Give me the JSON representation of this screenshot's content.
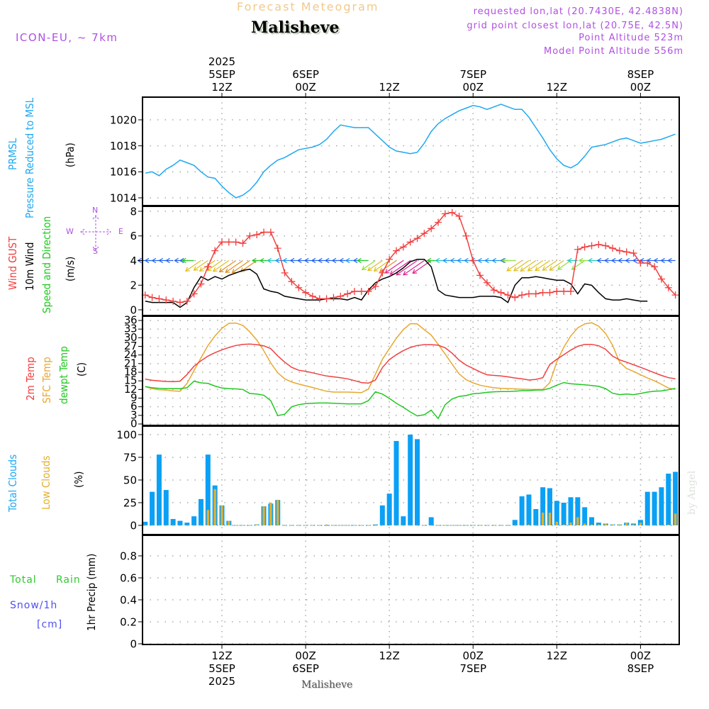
{
  "header": {
    "subtitle": "Forecast Meteogram",
    "location": "Malisheve",
    "model": "ICON-EU, ~ 7km",
    "requested": "requested lon,lat (20.7430E, 42.4838N)",
    "grid_point": "grid point closest lon,lat (20.75E, 42.5N)",
    "point_altitude": "Point Altitude 523m",
    "model_altitude": "Model Point Altitude 556m"
  },
  "footer": {
    "location": "Malisheve",
    "credit": "by Angel"
  },
  "colors": {
    "pressure": "#1fa8f0",
    "gust": "#f04040",
    "wind": "#000000",
    "temp2m": "#f04040",
    "sfc": "#e8a830",
    "dewpt": "#20c820",
    "total_clouds": "#0aa0f5",
    "low_clouds": "#e0b030",
    "compass": "#b050e0",
    "rain": "#30c830",
    "snow": "#5050f0"
  },
  "top_axis": [
    {
      "lines": [
        "2025",
        "5SEP",
        "12Z"
      ],
      "hour": 12
    },
    {
      "lines": [
        "6SEP",
        "00Z"
      ],
      "hour": 24
    },
    {
      "lines": [
        "12Z"
      ],
      "hour": 36
    },
    {
      "lines": [
        "7SEP",
        "00Z"
      ],
      "hour": 48
    },
    {
      "lines": [
        "12Z"
      ],
      "hour": 60
    },
    {
      "lines": [
        "8SEP",
        "00Z"
      ],
      "hour": 72
    }
  ],
  "bottom_axis": [
    {
      "lines": [
        "12Z",
        "5SEP",
        "2025"
      ],
      "hour": 12
    },
    {
      "lines": [
        "00Z",
        "6SEP"
      ],
      "hour": 24
    },
    {
      "lines": [
        "12Z"
      ],
      "hour": 36
    },
    {
      "lines": [
        "00Z",
        "7SEP"
      ],
      "hour": 48
    },
    {
      "lines": [
        "12Z"
      ],
      "hour": 60
    },
    {
      "lines": [
        "00Z",
        "8SEP"
      ],
      "hour": 72
    }
  ],
  "panel_labels": {
    "pressure": {
      "line1": "PRMSL",
      "line2": "Pressure Reduced to MSL",
      "unit": "(hPa)"
    },
    "wind": {
      "gust": "Wind GUST",
      "wind10": "10m Wind",
      "speed_dir": "Speed and Direction",
      "unit": "(m/s)",
      "compass": {
        "n": "N",
        "s": "S",
        "e": "E",
        "w": "W"
      }
    },
    "temp": {
      "t2m": "2m Temp",
      "sfc": "SFC Temp",
      "dewpt": "dewpt Temp",
      "unit": "(C)"
    },
    "clouds": {
      "total": "Total Clouds",
      "low": "Low Clouds",
      "unit": "(%)"
    },
    "precip": {
      "total": "Total",
      "rain": "Rain",
      "snow": "Snow/1h",
      "snow_unit": "[cm]",
      "axis": "1hr Precip (mm)"
    }
  },
  "chart_data": [
    {
      "type": "line",
      "title": "PRMSL Pressure Reduced to MSL",
      "ylabel": "(hPa)",
      "ylim": [
        1013.5,
        1021.8
      ],
      "yticks": [
        1014,
        1016,
        1018,
        1020
      ],
      "grid": true,
      "x_hours_start": 1,
      "series": [
        {
          "name": "PRMSL",
          "values": [
            1015.9,
            1016.0,
            1015.7,
            1016.2,
            1016.5,
            1016.9,
            1016.7,
            1016.5,
            1016.0,
            1015.6,
            1015.5,
            1014.9,
            1014.4,
            1014.0,
            1014.2,
            1014.6,
            1015.2,
            1016.0,
            1016.5,
            1016.9,
            1017.1,
            1017.4,
            1017.7,
            1017.8,
            1017.9,
            1018.1,
            1018.5,
            1019.1,
            1019.6,
            1019.5,
            1019.4,
            1019.4,
            1019.4,
            1018.9,
            1018.4,
            1017.9,
            1017.6,
            1017.5,
            1017.4,
            1017.5,
            1018.2,
            1019.1,
            1019.7,
            1020.1,
            1020.4,
            1020.7,
            1020.9,
            1021.1,
            1021.0,
            1020.8,
            1021.0,
            1021.2,
            1021.0,
            1020.8,
            1020.8,
            1020.2,
            1019.4,
            1018.6,
            1017.7,
            1017.0,
            1016.5,
            1016.3,
            1016.6,
            1017.2,
            1017.9,
            1018.0,
            1018.1,
            1018.3,
            1018.5,
            1018.6,
            1018.4,
            1018.2,
            1018.3,
            1018.4,
            1018.5,
            1018.7,
            1018.9
          ]
        }
      ]
    },
    {
      "type": "line",
      "title": "Wind GUST / 10m Wind Speed and Direction",
      "ylabel": "(m/s)",
      "ylim": [
        -0.4,
        8.4
      ],
      "yticks": [
        0,
        2,
        4,
        6,
        8
      ],
      "grid": true,
      "x_hours_start": 1,
      "series": [
        {
          "name": "Wind GUST",
          "values": [
            1.2,
            1.0,
            0.9,
            0.8,
            0.7,
            0.6,
            0.7,
            1.3,
            2.1,
            3.5,
            4.8,
            5.5,
            5.5,
            5.5,
            5.4,
            6.0,
            6.1,
            6.3,
            6.3,
            5.0,
            3.0,
            2.3,
            1.8,
            1.4,
            1.1,
            0.9,
            0.9,
            1.0,
            1.1,
            1.3,
            1.5,
            1.5,
            1.5,
            1.9,
            3.0,
            4.1,
            4.8,
            5.1,
            5.5,
            5.8,
            6.2,
            6.6,
            7.1,
            7.8,
            7.9,
            7.6,
            6.0,
            4.0,
            2.8,
            2.2,
            1.6,
            1.4,
            1.2,
            1.0,
            1.2,
            1.3,
            1.3,
            1.4,
            1.4,
            1.5,
            1.5,
            1.5,
            4.9,
            5.1,
            5.2,
            5.3,
            5.2,
            5.0,
            4.8,
            4.7,
            4.6,
            3.8,
            3.8,
            3.5,
            2.5,
            1.8,
            1.2,
            1.1,
            0.9,
            0.8,
            0.9,
            1.1
          ]
        },
        {
          "name": "10m Wind",
          "values": [
            0.7,
            0.6,
            0.6,
            0.6,
            0.6,
            0.2,
            0.6,
            1.8,
            2.7,
            2.4,
            2.7,
            2.5,
            2.8,
            3.0,
            3.2,
            3.3,
            2.9,
            1.7,
            1.5,
            1.4,
            1.1,
            1.0,
            0.9,
            0.8,
            0.8,
            0.8,
            0.9,
            0.9,
            0.9,
            0.8,
            1.0,
            0.8,
            1.6,
            2.2,
            2.5,
            2.7,
            3.0,
            3.4,
            3.9,
            4.1,
            4.1,
            3.5,
            1.6,
            1.2,
            1.1,
            1.0,
            1.0,
            1.0,
            1.1,
            1.1,
            1.1,
            1.0,
            0.6,
            2.0,
            2.6,
            2.6,
            2.7,
            2.6,
            2.5,
            2.4,
            2.4,
            2.1,
            1.3,
            2.1,
            2.0,
            1.4,
            0.9,
            0.8,
            0.8,
            0.9,
            0.8,
            0.7,
            0.7
          ]
        }
      ],
      "arrows": "wind direction arrows along 4 m/s level, mostly easterly/north-easterly flow (pointing west / south-west)"
    },
    {
      "type": "line",
      "title": "2m Temp / SFC Temp / dewpt Temp",
      "ylabel": "(C)",
      "ylim": [
        0,
        37
      ],
      "yticks": [
        0,
        3,
        6,
        9,
        12,
        15,
        18,
        21,
        24,
        27,
        30,
        33,
        36
      ],
      "grid": true,
      "x_hours_start": 1,
      "series": [
        {
          "name": "2m Temp",
          "values": [
            15.6,
            15.2,
            15.0,
            14.8,
            14.7,
            14.9,
            17.2,
            20.1,
            22.0,
            23.6,
            24.8,
            25.8,
            26.6,
            27.3,
            27.7,
            27.8,
            27.6,
            27.2,
            26.2,
            23.7,
            21.5,
            19.7,
            18.7,
            18.3,
            17.8,
            17.2,
            16.7,
            16.4,
            16.1,
            15.7,
            15.1,
            14.4,
            14.2,
            15.3,
            19.6,
            22.4,
            24.1,
            25.5,
            26.6,
            27.3,
            27.6,
            27.6,
            27.4,
            26.5,
            24.6,
            22.2,
            20.5,
            19.3,
            18.1,
            17.1,
            16.9,
            16.7,
            16.4,
            16.0,
            15.7,
            15.3,
            15.5,
            16.1,
            20.7,
            22.5,
            24.1,
            25.7,
            27.0,
            27.7,
            27.7,
            27.2,
            26.0,
            23.6,
            22.3,
            21.5,
            20.6,
            19.7,
            18.8,
            17.8,
            16.9,
            16.1,
            15.7,
            15.3,
            15.4
          ]
        },
        {
          "name": "SFC Temp",
          "values": [
            13.0,
            12.3,
            11.9,
            11.8,
            11.5,
            11.4,
            14.1,
            18.6,
            23.0,
            27.3,
            30.6,
            33.3,
            35.0,
            35.1,
            34.3,
            32.0,
            29.2,
            25.5,
            21.2,
            17.8,
            15.7,
            14.6,
            13.9,
            13.3,
            12.7,
            12.0,
            11.4,
            11.1,
            11.1,
            11.1,
            11.0,
            10.9,
            12.1,
            17.3,
            22.5,
            26.2,
            29.8,
            32.8,
            34.9,
            34.8,
            32.8,
            30.9,
            27.7,
            24.3,
            20.8,
            17.4,
            15.4,
            14.3,
            13.5,
            13.0,
            12.6,
            12.4,
            12.3,
            12.2,
            12.1,
            12.0,
            12.0,
            12.0,
            14.4,
            21.6,
            26.7,
            30.6,
            33.4,
            34.8,
            35.2,
            34.0,
            31.5,
            27.4,
            21.5,
            19.3,
            18.3,
            17.1,
            16.0,
            15.0,
            13.8,
            12.5,
            12.0,
            11.8,
            11.5,
            13.3
          ]
        },
        {
          "name": "dewpt Temp",
          "values": [
            13.0,
            12.6,
            12.4,
            12.3,
            12.3,
            12.3,
            12.6,
            14.9,
            14.3,
            14.1,
            13.2,
            12.5,
            12.3,
            12.2,
            12.0,
            10.6,
            10.4,
            10.0,
            8.1,
            2.9,
            3.4,
            6.0,
            6.7,
            7.1,
            7.2,
            7.3,
            7.3,
            7.2,
            7.1,
            7.0,
            7.0,
            7.0,
            8.1,
            11.2,
            10.4,
            8.9,
            7.2,
            5.8,
            4.2,
            2.8,
            3.2,
            4.8,
            1.9,
            6.7,
            8.7,
            9.6,
            9.9,
            10.5,
            10.7,
            11.0,
            11.2,
            11.3,
            11.3,
            11.4,
            11.6,
            11.6,
            11.8,
            11.8,
            12.4,
            13.5,
            14.4,
            14.0,
            13.8,
            13.6,
            13.4,
            13.1,
            12.3,
            10.7,
            10.2,
            10.4,
            10.2,
            10.6,
            11.1,
            11.4,
            11.5,
            11.9,
            12.4,
            12.7,
            12.9,
            13.0,
            12.9,
            12.8,
            12.8,
            12.8,
            13.0
          ]
        }
      ]
    },
    {
      "type": "bar",
      "title": "Total Clouds / Low Clouds",
      "ylabel": "(%)",
      "ylim": [
        0,
        100
      ],
      "yticks": [
        0,
        25,
        50,
        75,
        100
      ],
      "grid": true,
      "x_hours_start": 1,
      "series": [
        {
          "name": "Total Clouds",
          "values": [
            4,
            37,
            78,
            39,
            7,
            5,
            3,
            10,
            29,
            78,
            44,
            22,
            5,
            0,
            0,
            0,
            1,
            21,
            24,
            28,
            0,
            0,
            0,
            0,
            0,
            0,
            0,
            0,
            0,
            0,
            0,
            0,
            0,
            1,
            22,
            35,
            93,
            10,
            100,
            95,
            0,
            9,
            0,
            0,
            0,
            0,
            0,
            0,
            0,
            0,
            0,
            0,
            0,
            6,
            32,
            34,
            18,
            42,
            41,
            27,
            25,
            31,
            31,
            20,
            9,
            3,
            2,
            1,
            1,
            3,
            2,
            6,
            37,
            37,
            42,
            57,
            59,
            45,
            12,
            0,
            0,
            0,
            0,
            0,
            0
          ]
        },
        {
          "name": "Low Clouds",
          "values": [
            0,
            0,
            0,
            0,
            0,
            0,
            0,
            0,
            0,
            17,
            40,
            22,
            5,
            0,
            0,
            0,
            1,
            21,
            25,
            28,
            0,
            0,
            0,
            0,
            0,
            0,
            1,
            0,
            0,
            0,
            0,
            0,
            0,
            0,
            0,
            0,
            0,
            0,
            0,
            0,
            0,
            0,
            0,
            0,
            0,
            0,
            0,
            0,
            0,
            0,
            0,
            0,
            0,
            0,
            0,
            1,
            0,
            14,
            14,
            4,
            1,
            3,
            9,
            2,
            1,
            1,
            2,
            1,
            1,
            3,
            1,
            3,
            0,
            0,
            0,
            1,
            13,
            13,
            4,
            0,
            0,
            0,
            0,
            0,
            0
          ]
        }
      ]
    },
    {
      "type": "bar",
      "title": "1hr Precip",
      "ylabel": "1hr Precip (mm)",
      "ylim": [
        0,
        0.98
      ],
      "yticks": [
        0,
        0.2,
        0.4,
        0.6,
        0.8
      ],
      "yticklabels": [
        "0",
        "0.2",
        "0.4",
        "0.6",
        "0.8"
      ],
      "grid": true,
      "series": [
        {
          "name": "Total Rain",
          "values": []
        },
        {
          "name": "Snow/1h [cm]",
          "values": []
        }
      ]
    }
  ]
}
